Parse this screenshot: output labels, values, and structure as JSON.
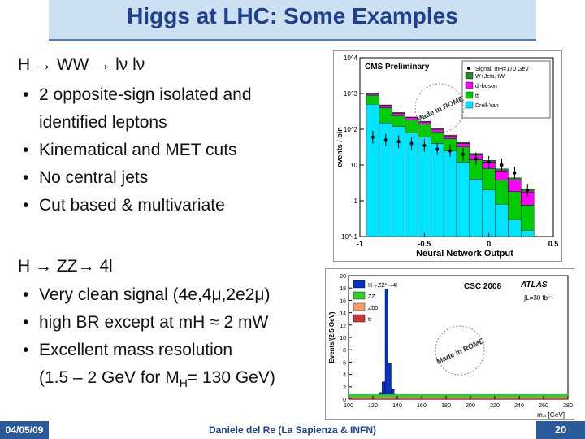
{
  "slide": {
    "title": "Higgs at LHC: Some Examples",
    "section1": {
      "heading": "H → WW → lν lν",
      "bullets": [
        "2 opposite-sign isolated and",
        "Kinematical and MET cuts",
        "No central jets",
        "Cut based & multivariate"
      ],
      "bullet1_cont": "identified leptons"
    },
    "section2": {
      "heading": "H → ZZ→ 4l",
      "bullets": [
        "Very clean signal (4e,4μ,2e2μ)",
        "high BR except at mH ≈ 2 mW",
        "Excellent mass resolution"
      ],
      "bullet3_cont": "(1.5 – 2 GeV for M",
      "bullet3_sub": "H",
      "bullet3_tail": "= 130 GeV)"
    },
    "footer": {
      "date": "04/05/09",
      "author": "Daniele del Re (La Sapienza & INFN)",
      "page": "20"
    },
    "colors": {
      "title": "#1f3f8f",
      "title_band": "#cce0f2",
      "footer_band": "#2a5a9a"
    }
  },
  "chart_data": [
    {
      "type": "bar",
      "stacked": true,
      "log_y": true,
      "title": "CMS Preliminary",
      "xlabel": "Neural Network Output",
      "ylabel": "events / bin",
      "xlim": [
        -1,
        0.5
      ],
      "ylim": [
        0.1,
        10000
      ],
      "x_ticks": [
        "-1",
        "-0.5",
        "0",
        "0.5"
      ],
      "y_ticks": [
        "10^-1",
        "1",
        "10",
        "10^2",
        "10^3",
        "10^4"
      ],
      "legend_header": "Signal, mH=170 GeV",
      "bin_edges": [
        -0.95,
        -0.85,
        -0.75,
        -0.65,
        -0.55,
        -0.45,
        -0.35,
        -0.25,
        -0.15,
        -0.05,
        0.05,
        0.15,
        0.25,
        0.35
      ],
      "series": [
        {
          "name": "Drell-Yan",
          "color": "#00e5ff",
          "values": [
            500,
            150,
            120,
            80,
            60,
            40,
            25,
            12,
            4,
            2,
            0.8,
            0.3,
            0.15
          ]
        },
        {
          "name": "tt",
          "color": "#00cc00",
          "values": [
            400,
            250,
            120,
            100,
            80,
            45,
            30,
            20,
            10,
            6,
            3,
            1.5,
            0.6
          ]
        },
        {
          "name": "di-boson",
          "color": "#ff00ff",
          "values": [
            100,
            60,
            40,
            30,
            20,
            15,
            10,
            8,
            5,
            4,
            3,
            2,
            1
          ]
        },
        {
          "name": "W+Jets, tW",
          "color": "#228822",
          "values": [
            30,
            20,
            15,
            10,
            8,
            6,
            4,
            3,
            2,
            1.5,
            1,
            0.6,
            0.3
          ]
        }
      ],
      "signal_points": [
        {
          "x": -0.9,
          "y": 60
        },
        {
          "x": -0.8,
          "y": 50
        },
        {
          "x": -0.7,
          "y": 45
        },
        {
          "x": -0.6,
          "y": 40
        },
        {
          "x": -0.5,
          "y": 35
        },
        {
          "x": -0.4,
          "y": 28
        },
        {
          "x": -0.3,
          "y": 25
        },
        {
          "x": -0.2,
          "y": 20
        },
        {
          "x": -0.1,
          "y": 15
        },
        {
          "x": 0.0,
          "y": 12
        },
        {
          "x": 0.1,
          "y": 10
        },
        {
          "x": 0.2,
          "y": 6
        },
        {
          "x": 0.3,
          "y": 2
        }
      ],
      "stamp": "Made in ROME"
    },
    {
      "type": "bar",
      "stacked": true,
      "title": "CSC 2008",
      "subtitle": "ATLAS",
      "lumi": "∫L=30 fb⁻¹",
      "xlabel": "m₄ₗ [GeV]",
      "ylabel": "Events/(2.5 GeV)",
      "xlim": [
        100,
        280
      ],
      "ylim": [
        0,
        20
      ],
      "x_ticks": [
        "100",
        "120",
        "140",
        "160",
        "180",
        "200",
        "220",
        "240",
        "260",
        "280"
      ],
      "y_ticks": [
        "0",
        "2",
        "4",
        "6",
        "8",
        "10",
        "12",
        "14",
        "16",
        "18",
        "20"
      ],
      "series": [
        {
          "name": "H→ZZ*→4l",
          "color": "#0033cc",
          "bins": [
            [
              125,
              0.3
            ],
            [
              127.5,
              2
            ],
            [
              130,
              17
            ],
            [
              132.5,
              5
            ],
            [
              135,
              0.8
            ]
          ]
        },
        {
          "name": "ZZ",
          "color": "#33cc33",
          "level": 0.8
        },
        {
          "name": "Zbb",
          "color": "#ff9966",
          "level": 0.3
        },
        {
          "name": "tt",
          "color": "#cc3333",
          "level": 0.1
        }
      ],
      "stamp": "Made in ROME"
    }
  ]
}
